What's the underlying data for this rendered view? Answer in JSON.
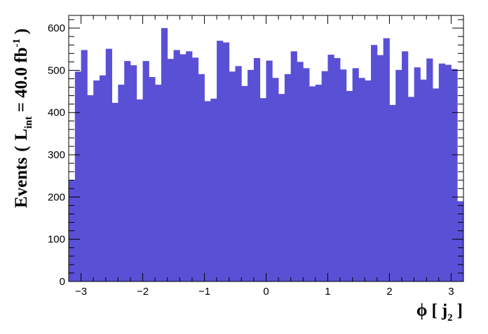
{
  "chart_data": {
    "type": "bar",
    "histogram": true,
    "bin_start": -3.2,
    "bin_width": 0.1,
    "values": [
      240,
      497,
      548,
      441,
      476,
      488,
      551,
      423,
      466,
      522,
      512,
      431,
      522,
      484,
      466,
      600,
      527,
      548,
      538,
      545,
      530,
      491,
      427,
      433,
      570,
      566,
      497,
      510,
      463,
      501,
      529,
      434,
      523,
      482,
      444,
      491,
      545,
      520,
      505,
      462,
      466,
      498,
      537,
      529,
      502,
      451,
      505,
      482,
      476,
      560,
      536,
      576,
      418,
      501,
      545,
      437,
      507,
      478,
      528,
      457,
      516,
      513,
      503,
      190
    ],
    "bar_color": "#5a50d6",
    "xlim": [
      -3.2,
      3.2
    ],
    "ylim": [
      0,
      630
    ],
    "x_ticks": [
      -3,
      -2,
      -1,
      0,
      1,
      2,
      3
    ],
    "x_tick_labels": [
      "−3",
      "−2",
      "−1",
      "0",
      "1",
      "2",
      "3"
    ],
    "y_ticks": [
      0,
      100,
      200,
      300,
      400,
      500,
      600
    ],
    "y_tick_labels": [
      "0",
      "100",
      "200",
      "300",
      "400",
      "500",
      "600"
    ],
    "xlabel": {
      "phi": "ϕ",
      "open": "[",
      "var": "j",
      "sub": "2",
      "close": "]"
    },
    "ylabel": {
      "prefix": "Events",
      "open": "(",
      "L": "L",
      "sub": "int",
      "eq": "= 40.0 fb",
      "sup": "-1",
      "close": ")"
    }
  }
}
